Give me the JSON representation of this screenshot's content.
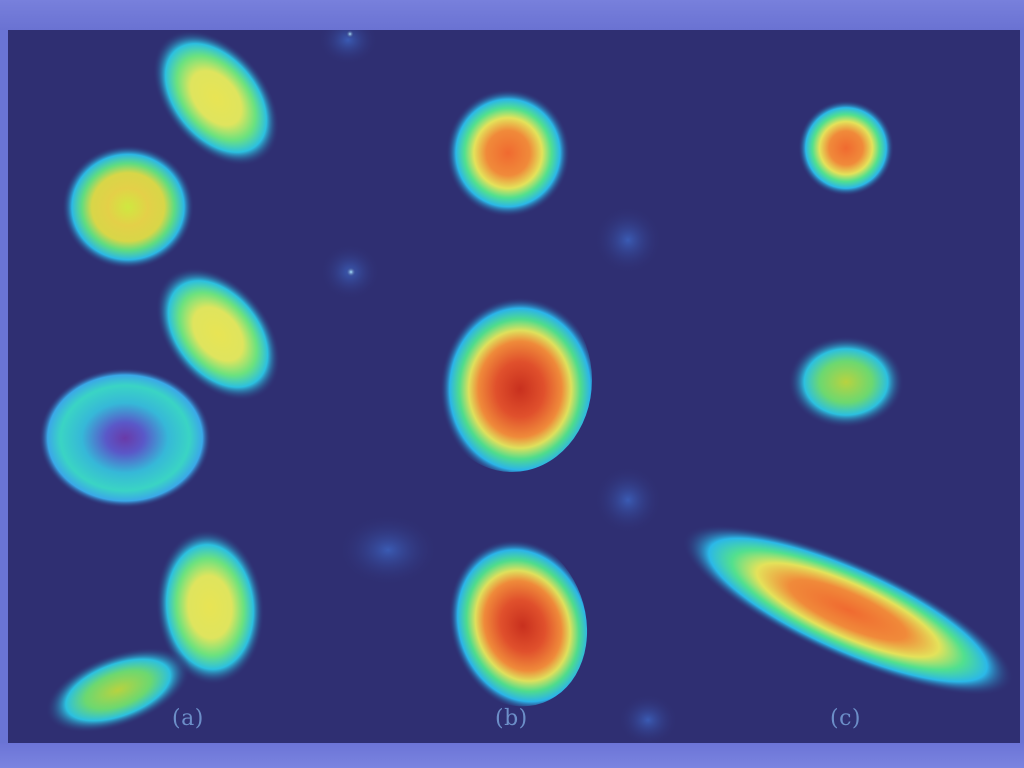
{
  "panels": [
    {
      "label": "(a)"
    },
    {
      "label": "(b)"
    },
    {
      "label": "(c)"
    }
  ],
  "colors": {
    "background": "#2f2f72",
    "frame": "#6a74d4",
    "heat_low": "#3a7be0",
    "heat_mid": "#2fd8a0",
    "heat_high": "#e8e860",
    "heat_peak": "#e0502c",
    "label": "#6c8ec8"
  }
}
